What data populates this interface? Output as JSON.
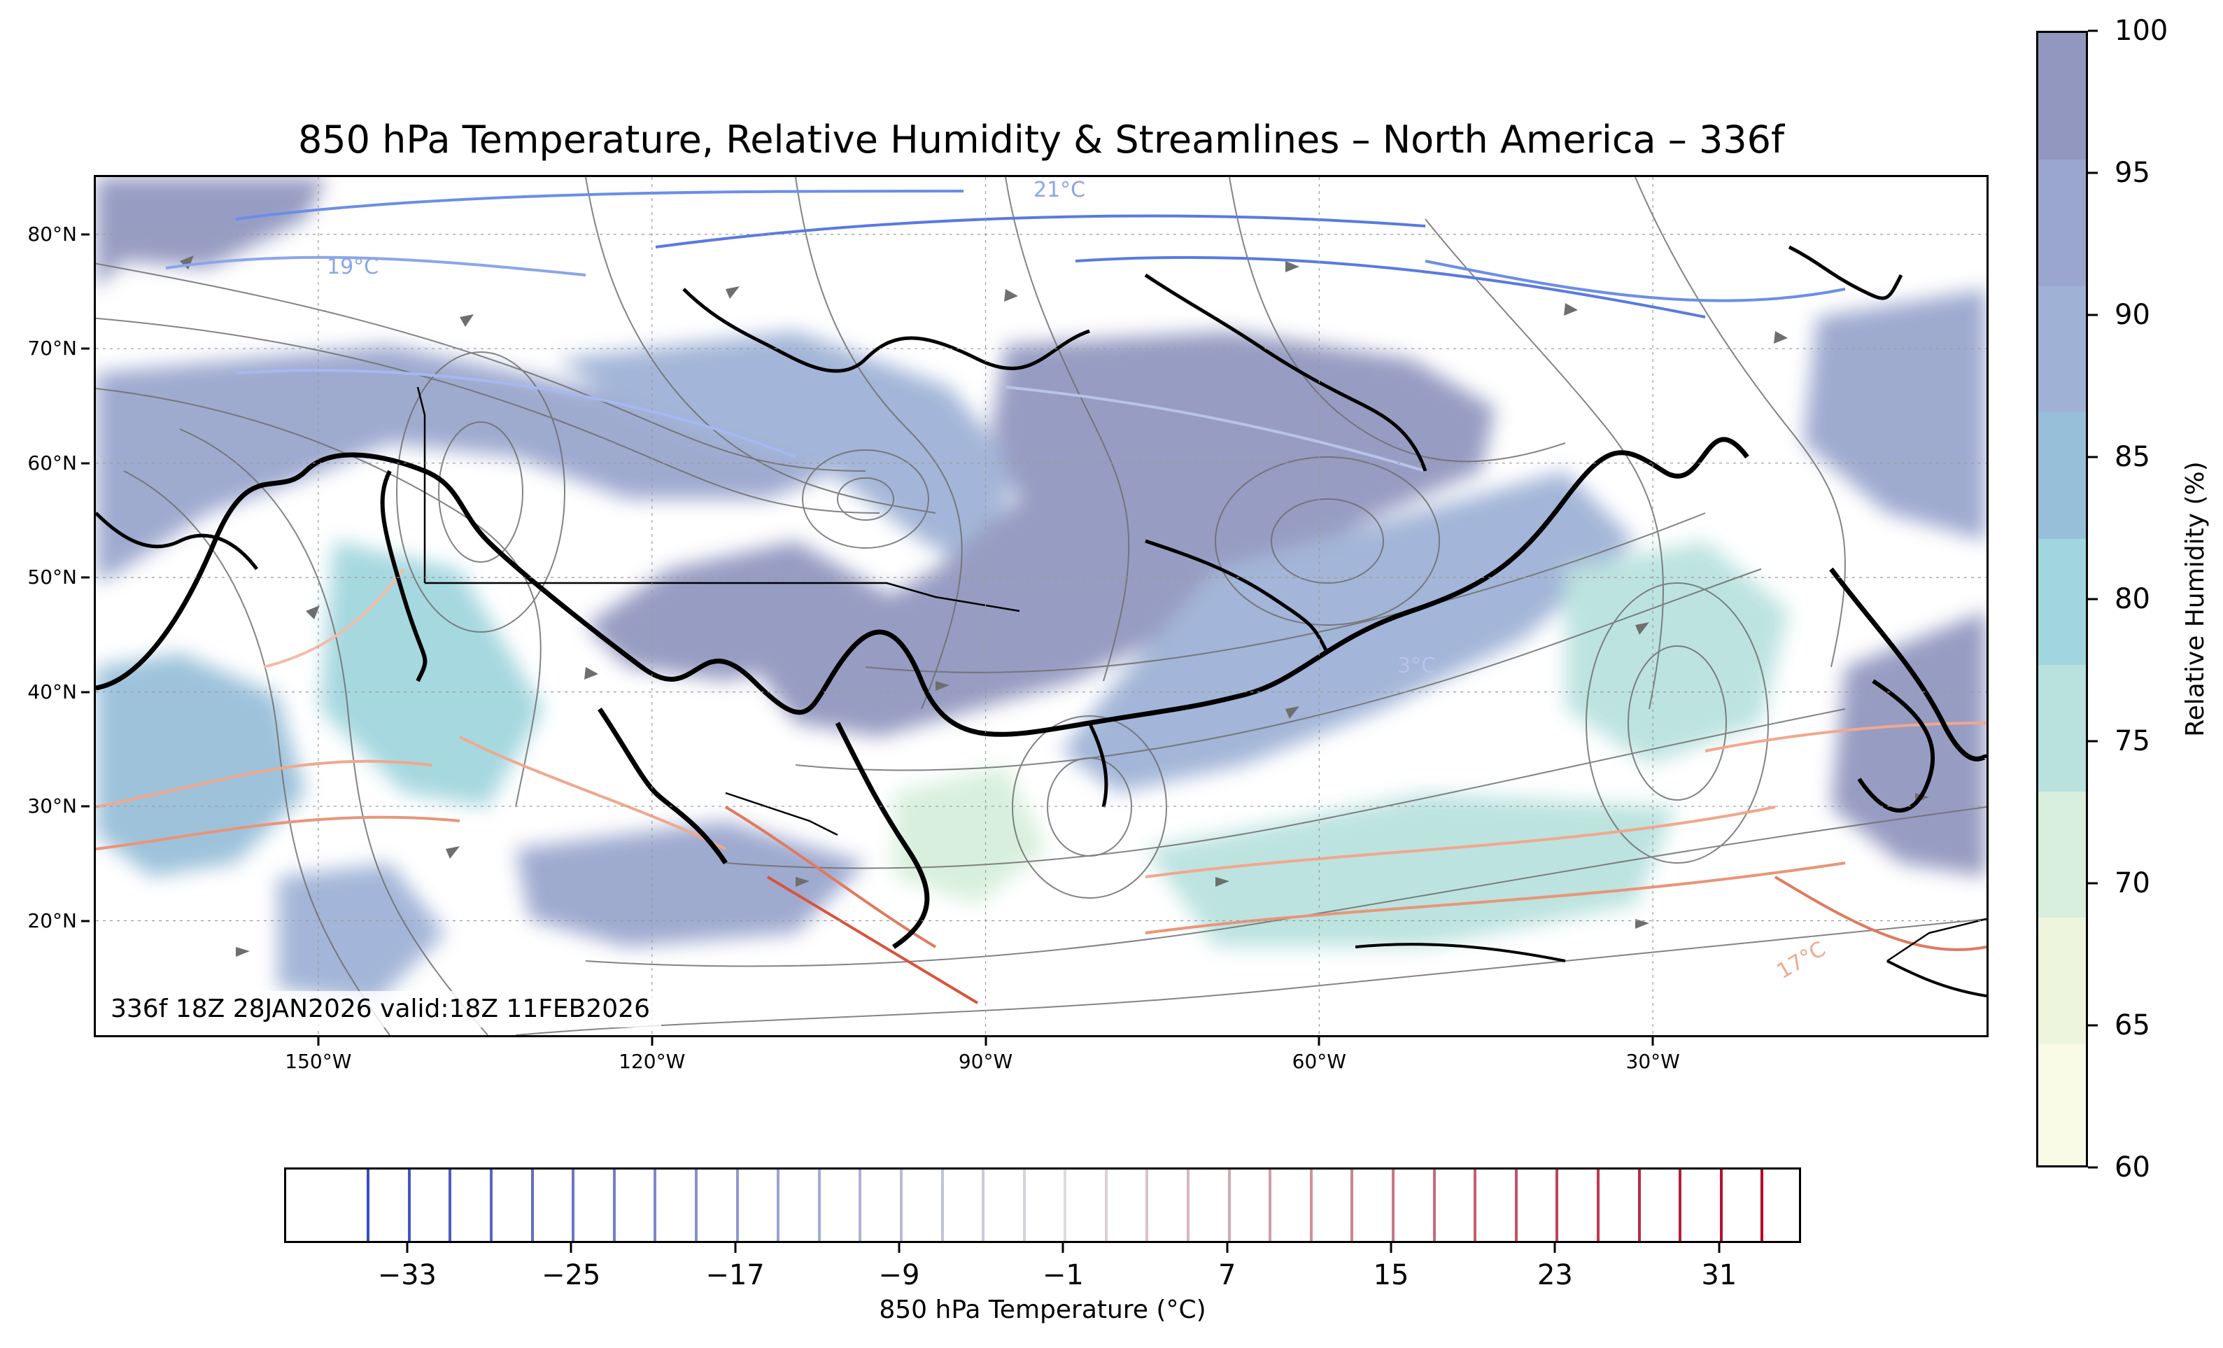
{
  "title": "850 hPa Temperature, Relative Humidity & Streamlines – North America – 336f",
  "run_label": "336f 18Z 28JAN2026 valid:18Z 11FEB2026",
  "map": {
    "lon_range": [
      -170,
      0
    ],
    "lat_range": [
      10,
      85
    ],
    "lat_ticks": [
      "80°N",
      "70°N",
      "60°N",
      "50°N",
      "40°N",
      "30°N",
      "20°N"
    ],
    "lat_tick_values": [
      80,
      70,
      60,
      50,
      40,
      30,
      20
    ],
    "lon_ticks": [
      "150°W",
      "120°W",
      "90°W",
      "60°W",
      "30°W"
    ],
    "lon_tick_values": [
      -150,
      -120,
      -90,
      -60,
      -30
    ],
    "contour_labels": [
      "19°C",
      "21°C",
      "17°C",
      "3°C"
    ],
    "layers": [
      "relative-humidity-fill",
      "temperature-contours",
      "streamlines",
      "coastlines"
    ],
    "colors": {
      "cold": "#3f5fd6",
      "warm": "#d9533c",
      "humid": "#8d96bd",
      "coast": "#000000",
      "streamline": "#6e6e6e"
    }
  },
  "rh_colorbar": {
    "label": "Relative Humidity (%)",
    "ticks": [
      "100",
      "95",
      "90",
      "85",
      "80",
      "75",
      "70",
      "65",
      "60"
    ],
    "tick_values": [
      100,
      95,
      90,
      85,
      80,
      75,
      70,
      65,
      60
    ],
    "range": [
      60,
      100
    ],
    "colors": [
      "#f9fbe6",
      "#edf6dc",
      "#d7efdc",
      "#b9e2de",
      "#a2d6de",
      "#98bfd9",
      "#9fb2d6",
      "#9aa6cd",
      "#9297bf"
    ]
  },
  "temp_colorbar": {
    "label": "850 hPa Temperature (°C)",
    "ticks": [
      "−33",
      "−25",
      "−17",
      "−9",
      "−1",
      "7",
      "15",
      "23",
      "31"
    ],
    "tick_values": [
      -33,
      -25,
      -17,
      -9,
      -1,
      7,
      15,
      23,
      31
    ],
    "range": [
      -39,
      35
    ],
    "levels": [
      -35,
      -33,
      -31,
      -29,
      -27,
      -25,
      -23,
      -21,
      -19,
      -17,
      -15,
      -13,
      -11,
      -9,
      -7,
      -5,
      -3,
      -1,
      1,
      3,
      5,
      7,
      9,
      11,
      13,
      15,
      17,
      19,
      21,
      23,
      25,
      27,
      29,
      31,
      33
    ]
  }
}
